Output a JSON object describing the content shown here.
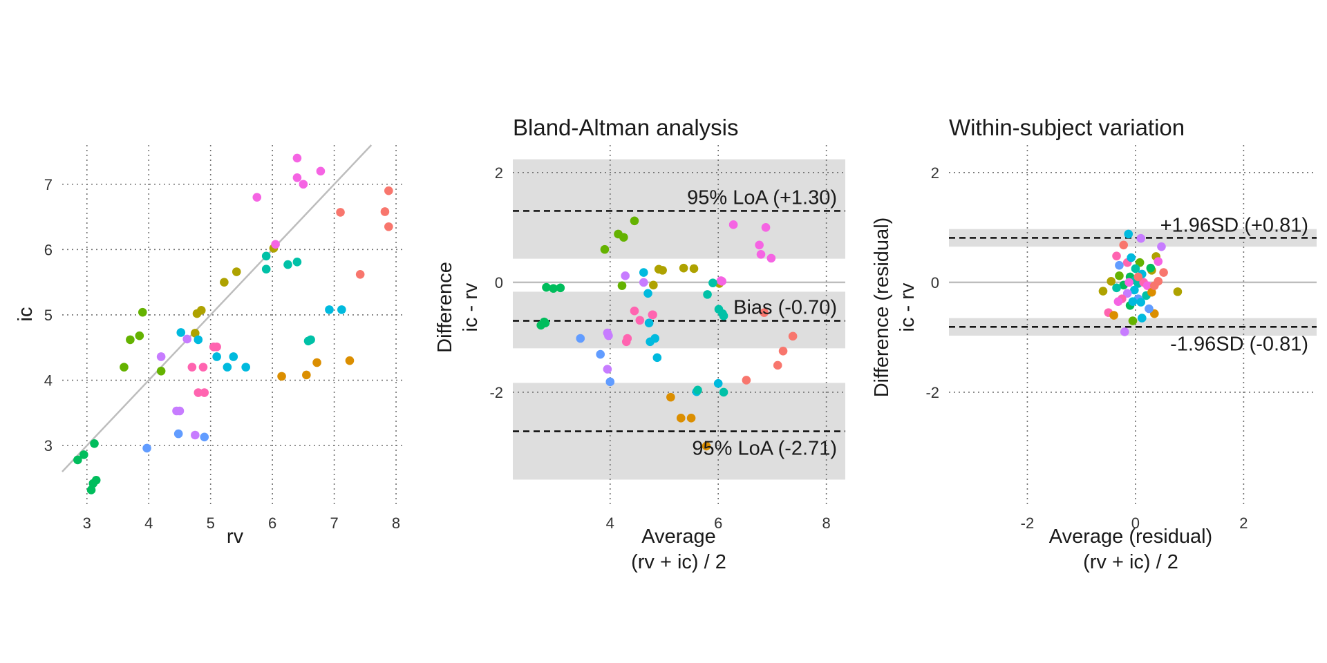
{
  "palette": [
    "#F8766D",
    "#DB8E00",
    "#AEA200",
    "#64B200",
    "#00BD5C",
    "#00C1A7",
    "#00BADE",
    "#619CFF",
    "#C77CFF",
    "#F564E3",
    "#FF64B0"
  ],
  "chart_data": [
    {
      "type": "scatter",
      "title": "",
      "xlabel": "rv",
      "ylabel": "ic",
      "xlim": [
        2.6,
        8.1
      ],
      "ylim": [
        2.05,
        7.6
      ],
      "xticks": [
        3,
        4,
        5,
        6,
        7,
        8
      ],
      "yticks": [
        3,
        4,
        5,
        6,
        7
      ],
      "grid": true,
      "identity_line": true,
      "points": [
        {
          "x": 2.85,
          "y": 2.78,
          "g": 4
        },
        {
          "x": 2.95,
          "y": 2.86,
          "g": 4
        },
        {
          "x": 3.12,
          "y": 3.03,
          "g": 4
        },
        {
          "x": 3.07,
          "y": 2.32,
          "g": 4
        },
        {
          "x": 3.1,
          "y": 2.42,
          "g": 4
        },
        {
          "x": 3.15,
          "y": 2.47,
          "g": 4
        },
        {
          "x": 3.6,
          "y": 4.2,
          "g": 3
        },
        {
          "x": 3.7,
          "y": 4.62,
          "g": 3
        },
        {
          "x": 3.85,
          "y": 4.68,
          "g": 3
        },
        {
          "x": 3.9,
          "y": 5.04,
          "g": 3
        },
        {
          "x": 4.2,
          "y": 4.14,
          "g": 3
        },
        {
          "x": 4.75,
          "y": 4.72,
          "g": 2
        },
        {
          "x": 4.78,
          "y": 5.02,
          "g": 2
        },
        {
          "x": 4.85,
          "y": 5.07,
          "g": 2
        },
        {
          "x": 5.22,
          "y": 5.5,
          "g": 2
        },
        {
          "x": 5.42,
          "y": 5.66,
          "g": 2
        },
        {
          "x": 6.02,
          "y": 6.02,
          "g": 2
        },
        {
          "x": 4.2,
          "y": 4.36,
          "g": 8
        },
        {
          "x": 4.62,
          "y": 4.63,
          "g": 8
        },
        {
          "x": 4.45,
          "y": 3.53,
          "g": 8
        },
        {
          "x": 4.5,
          "y": 3.53,
          "g": 8
        },
        {
          "x": 4.75,
          "y": 3.16,
          "g": 8
        },
        {
          "x": 3.97,
          "y": 2.96,
          "g": 7
        },
        {
          "x": 4.48,
          "y": 3.18,
          "g": 7
        },
        {
          "x": 4.9,
          "y": 3.13,
          "g": 7
        },
        {
          "x": 4.52,
          "y": 4.73,
          "g": 6
        },
        {
          "x": 4.8,
          "y": 4.62,
          "g": 6
        },
        {
          "x": 5.1,
          "y": 4.36,
          "g": 6
        },
        {
          "x": 5.27,
          "y": 4.2,
          "g": 6
        },
        {
          "x": 5.37,
          "y": 4.36,
          "g": 6
        },
        {
          "x": 5.57,
          "y": 4.2,
          "g": 6
        },
        {
          "x": 6.92,
          "y": 5.08,
          "g": 6
        },
        {
          "x": 7.12,
          "y": 5.08,
          "g": 6
        },
        {
          "x": 4.7,
          "y": 4.2,
          "g": 10
        },
        {
          "x": 4.88,
          "y": 4.2,
          "g": 10
        },
        {
          "x": 4.8,
          "y": 3.81,
          "g": 10
        },
        {
          "x": 4.9,
          "y": 3.81,
          "g": 10
        },
        {
          "x": 5.05,
          "y": 4.51,
          "g": 10
        },
        {
          "x": 5.1,
          "y": 4.51,
          "g": 10
        },
        {
          "x": 5.75,
          "y": 6.8,
          "g": 9
        },
        {
          "x": 6.05,
          "y": 6.08,
          "g": 9
        },
        {
          "x": 6.4,
          "y": 7.4,
          "g": 9
        },
        {
          "x": 6.4,
          "y": 7.1,
          "g": 9
        },
        {
          "x": 6.5,
          "y": 7.0,
          "g": 9
        },
        {
          "x": 6.78,
          "y": 7.2,
          "g": 9
        },
        {
          "x": 5.9,
          "y": 5.9,
          "g": 5
        },
        {
          "x": 5.9,
          "y": 5.7,
          "g": 5
        },
        {
          "x": 6.25,
          "y": 5.77,
          "g": 5
        },
        {
          "x": 6.4,
          "y": 5.81,
          "g": 5
        },
        {
          "x": 6.58,
          "y": 4.6,
          "g": 5
        },
        {
          "x": 6.62,
          "y": 4.62,
          "g": 5
        },
        {
          "x": 6.15,
          "y": 4.06,
          "g": 1
        },
        {
          "x": 6.55,
          "y": 4.08,
          "g": 1
        },
        {
          "x": 6.72,
          "y": 4.27,
          "g": 1
        },
        {
          "x": 7.25,
          "y": 4.3,
          "g": 1
        },
        {
          "x": 7.1,
          "y": 6.57,
          "g": 0
        },
        {
          "x": 7.42,
          "y": 5.62,
          "g": 0
        },
        {
          "x": 7.82,
          "y": 6.58,
          "g": 0
        },
        {
          "x": 7.88,
          "y": 6.9,
          "g": 0
        },
        {
          "x": 7.88,
          "y": 6.35,
          "g": 0
        }
      ]
    },
    {
      "type": "scatter",
      "title": "Bland-Altman analysis",
      "xlabel": "Average",
      "xlabel2": "(rv + ic) / 2",
      "ylabel": "Difference",
      "ylabel2": "ic - rv",
      "xlim": [
        2.2,
        8.35
      ],
      "ylim": [
        -4.1,
        2.5
      ],
      "xticks": [
        4,
        6,
        8
      ],
      "yticks": [
        -2,
        0,
        2
      ],
      "grid": true,
      "zero_line": true,
      "bias": -0.7,
      "loa_upper": 1.3,
      "loa_lower": -2.71,
      "bands": [
        [
          0.43,
          2.24
        ],
        [
          -1.2,
          -0.17
        ],
        [
          -3.59,
          -1.83
        ]
      ],
      "bias_label": "Bias (-0.70)",
      "loa_upper_label": "95% LoA (+1.30)",
      "loa_lower_label": "95% LoA (-2.71)",
      "points": [
        {
          "x": 2.72,
          "y": -0.78,
          "g": 4
        },
        {
          "x": 2.78,
          "y": -0.72,
          "g": 4
        },
        {
          "x": 2.8,
          "y": -0.74,
          "g": 4
        },
        {
          "x": 2.82,
          "y": -0.09,
          "g": 4
        },
        {
          "x": 2.95,
          "y": -0.11,
          "g": 4
        },
        {
          "x": 3.08,
          "y": -0.1,
          "g": 4
        },
        {
          "x": 3.9,
          "y": 0.6,
          "g": 3
        },
        {
          "x": 4.15,
          "y": 0.88,
          "g": 3
        },
        {
          "x": 4.25,
          "y": 0.82,
          "g": 3
        },
        {
          "x": 4.45,
          "y": 1.12,
          "g": 3
        },
        {
          "x": 4.22,
          "y": -0.06,
          "g": 3
        },
        {
          "x": 4.8,
          "y": -0.05,
          "g": 2
        },
        {
          "x": 4.9,
          "y": 0.24,
          "g": 2
        },
        {
          "x": 4.97,
          "y": 0.22,
          "g": 2
        },
        {
          "x": 5.36,
          "y": 0.26,
          "g": 2
        },
        {
          "x": 5.55,
          "y": 0.25,
          "g": 2
        },
        {
          "x": 6.02,
          "y": -0.02,
          "g": 2
        },
        {
          "x": 4.28,
          "y": 0.12,
          "g": 8
        },
        {
          "x": 4.62,
          "y": 0.0,
          "g": 8
        },
        {
          "x": 3.95,
          "y": -1.58,
          "g": 8
        },
        {
          "x": 3.95,
          "y": -0.92,
          "g": 8
        },
        {
          "x": 3.97,
          "y": -0.97,
          "g": 8
        },
        {
          "x": 3.45,
          "y": -1.02,
          "g": 7
        },
        {
          "x": 3.82,
          "y": -1.31,
          "g": 7
        },
        {
          "x": 4.0,
          "y": -1.81,
          "g": 7
        },
        {
          "x": 4.62,
          "y": 0.18,
          "g": 6
        },
        {
          "x": 4.7,
          "y": -0.2,
          "g": 6
        },
        {
          "x": 4.72,
          "y": -0.74,
          "g": 6
        },
        {
          "x": 4.74,
          "y": -1.08,
          "g": 6
        },
        {
          "x": 4.83,
          "y": -1.02,
          "g": 6
        },
        {
          "x": 4.87,
          "y": -1.37,
          "g": 6
        },
        {
          "x": 5.6,
          "y": -1.99,
          "g": 6
        },
        {
          "x": 6.0,
          "y": -1.84,
          "g": 6
        },
        {
          "x": 4.3,
          "y": -1.08,
          "g": 10
        },
        {
          "x": 4.32,
          "y": -1.02,
          "g": 10
        },
        {
          "x": 4.45,
          "y": -0.52,
          "g": 10
        },
        {
          "x": 4.55,
          "y": -0.69,
          "g": 10
        },
        {
          "x": 4.78,
          "y": -0.59,
          "g": 10
        },
        {
          "x": 4.79,
          "y": -0.59,
          "g": 10
        },
        {
          "x": 6.07,
          "y": 0.02,
          "g": 9
        },
        {
          "x": 6.05,
          "y": 0.03,
          "g": 9
        },
        {
          "x": 6.28,
          "y": 1.05,
          "g": 9
        },
        {
          "x": 6.76,
          "y": 0.68,
          "g": 9
        },
        {
          "x": 6.79,
          "y": 0.51,
          "g": 9
        },
        {
          "x": 6.88,
          "y": 1.0,
          "g": 9
        },
        {
          "x": 6.98,
          "y": 0.44,
          "g": 9
        },
        {
          "x": 5.8,
          "y": -0.22,
          "g": 5
        },
        {
          "x": 5.9,
          "y": -0.01,
          "g": 5
        },
        {
          "x": 6.01,
          "y": -0.49,
          "g": 5
        },
        {
          "x": 6.08,
          "y": -0.57,
          "g": 5
        },
        {
          "x": 6.1,
          "y": -0.61,
          "g": 5
        },
        {
          "x": 5.62,
          "y": -1.96,
          "g": 5
        },
        {
          "x": 6.1,
          "y": -2.0,
          "g": 5
        },
        {
          "x": 5.12,
          "y": -2.09,
          "g": 1
        },
        {
          "x": 5.31,
          "y": -2.47,
          "g": 1
        },
        {
          "x": 5.5,
          "y": -2.47,
          "g": 1
        },
        {
          "x": 5.78,
          "y": -2.98,
          "g": 1
        },
        {
          "x": 6.52,
          "y": -1.78,
          "g": 0
        },
        {
          "x": 6.85,
          "y": -0.55,
          "g": 0
        },
        {
          "x": 7.1,
          "y": -1.51,
          "g": 0
        },
        {
          "x": 7.2,
          "y": -1.25,
          "g": 0
        },
        {
          "x": 7.38,
          "y": -0.98,
          "g": 0
        }
      ]
    },
    {
      "type": "scatter",
      "title": "Within-subject variation",
      "xlabel": "Average (residual)",
      "xlabel2": "(rv + ic) / 2",
      "ylabel": "Difference (residual)",
      "ylabel2": "ic - rv",
      "xlim": [
        -3.45,
        3.35
      ],
      "ylim": [
        -4.1,
        2.5
      ],
      "xticks": [
        -2,
        0,
        2
      ],
      "yticks": [
        -2,
        0,
        2
      ],
      "grid": true,
      "zero_line": true,
      "sd_upper": 0.81,
      "sd_lower": -0.81,
      "bands": [
        [
          0.65,
          0.97
        ],
        [
          -0.97,
          -0.65
        ]
      ],
      "sd_upper_label": "+1.96SD (+0.81)",
      "sd_lower_label": "-1.96SD (-0.81)",
      "points": [
        {
          "x": -0.13,
          "y": 0.88,
          "g": 6
        },
        {
          "x": 0.1,
          "y": 0.8,
          "g": 8
        },
        {
          "x": 0.48,
          "y": 0.65,
          "g": 8
        },
        {
          "x": -0.35,
          "y": 0.48,
          "g": 10
        },
        {
          "x": -0.15,
          "y": 0.36,
          "g": 10
        },
        {
          "x": -0.3,
          "y": 0.31,
          "g": 7
        },
        {
          "x": -0.08,
          "y": 0.45,
          "g": 6
        },
        {
          "x": 0.08,
          "y": 0.36,
          "g": 3
        },
        {
          "x": 0.3,
          "y": 0.22,
          "g": 2
        },
        {
          "x": 0.38,
          "y": 0.47,
          "g": 2
        },
        {
          "x": 0.42,
          "y": 0.38,
          "g": 9
        },
        {
          "x": 0.28,
          "y": 0.26,
          "g": 4
        },
        {
          "x": 0.52,
          "y": 0.18,
          "g": 0
        },
        {
          "x": -0.22,
          "y": 0.68,
          "g": 0
        },
        {
          "x": -0.45,
          "y": 0.02,
          "g": 2
        },
        {
          "x": -0.3,
          "y": 0.12,
          "g": 3
        },
        {
          "x": -0.22,
          "y": -0.05,
          "g": 4
        },
        {
          "x": -0.1,
          "y": 0.1,
          "g": 4
        },
        {
          "x": 0.0,
          "y": 0.04,
          "g": 5
        },
        {
          "x": 0.05,
          "y": -0.02,
          "g": 5
        },
        {
          "x": 0.12,
          "y": 0.15,
          "g": 6
        },
        {
          "x": 0.15,
          "y": 0.0,
          "g": 10
        },
        {
          "x": 0.22,
          "y": -0.06,
          "g": 9
        },
        {
          "x": -0.02,
          "y": -0.14,
          "g": 6
        },
        {
          "x": -0.15,
          "y": -0.2,
          "g": 8
        },
        {
          "x": -0.25,
          "y": -0.3,
          "g": 10
        },
        {
          "x": -0.32,
          "y": -0.35,
          "g": 9
        },
        {
          "x": 0.05,
          "y": -0.3,
          "g": 7
        },
        {
          "x": 0.2,
          "y": -0.24,
          "g": 5
        },
        {
          "x": -0.1,
          "y": -0.42,
          "g": 4
        },
        {
          "x": -0.05,
          "y": -0.35,
          "g": 6
        },
        {
          "x": 0.1,
          "y": -0.36,
          "g": 6
        },
        {
          "x": 0.3,
          "y": -0.18,
          "g": 1
        },
        {
          "x": -0.6,
          "y": -0.16,
          "g": 2
        },
        {
          "x": 0.78,
          "y": -0.17,
          "g": 2
        },
        {
          "x": -0.5,
          "y": -0.55,
          "g": 10
        },
        {
          "x": -0.4,
          "y": -0.6,
          "g": 1
        },
        {
          "x": -0.2,
          "y": -0.9,
          "g": 8
        },
        {
          "x": 0.12,
          "y": -0.65,
          "g": 6
        },
        {
          "x": -0.05,
          "y": -0.7,
          "g": 3
        },
        {
          "x": 0.35,
          "y": -0.57,
          "g": 1
        },
        {
          "x": 0.25,
          "y": -0.48,
          "g": 7
        },
        {
          "x": 0.42,
          "y": 0.02,
          "g": 0
        },
        {
          "x": 0.35,
          "y": -0.06,
          "g": 0
        },
        {
          "x": -0.35,
          "y": -0.1,
          "g": 5
        },
        {
          "x": 0.0,
          "y": 0.25,
          "g": 5
        },
        {
          "x": -0.12,
          "y": 0.0,
          "g": 9
        },
        {
          "x": 0.05,
          "y": 0.1,
          "g": 0
        }
      ]
    }
  ]
}
